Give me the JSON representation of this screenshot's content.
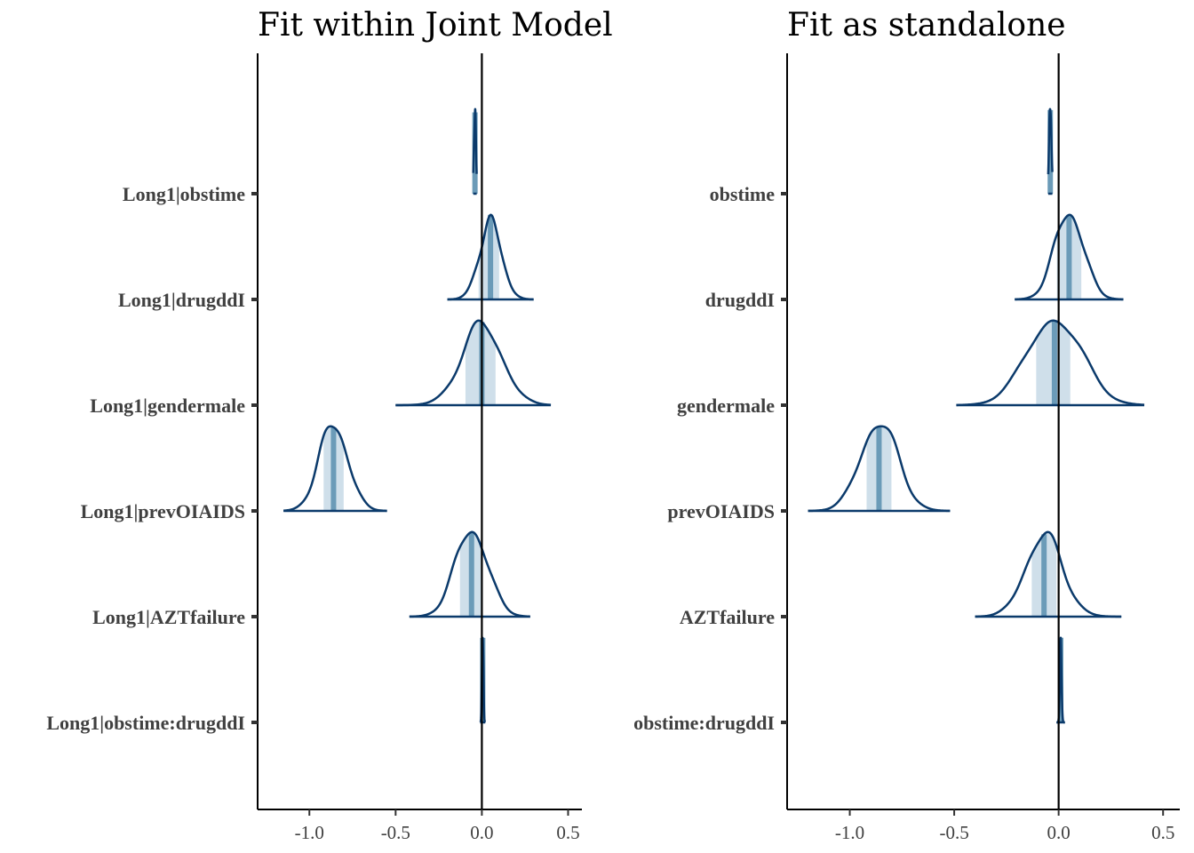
{
  "chart_data": [
    {
      "type": "density-ridges",
      "title": "Fit within Joint Model",
      "xlim": [
        -1.3,
        0.58
      ],
      "xticks": [
        -1.0,
        -0.5,
        0.0,
        0.5
      ],
      "xtick_labels": [
        "-1.0",
        "-0.5",
        "0.0",
        "0.5"
      ],
      "vline_at": 0.0,
      "grid": false,
      "colors": {
        "outline": "#0b3a6b",
        "median": "#6b9bb8",
        "interval": "#cfdfea",
        "axis": "#000000"
      },
      "params": [
        {
          "label": "Long1|obstime",
          "mean": -0.04,
          "sd": 0.006,
          "min": -0.05,
          "max": -0.03,
          "ci": [
            -0.045,
            -0.035
          ],
          "peak": 0.8
        },
        {
          "label": "Long1|drugddI",
          "mean": 0.05,
          "sd": 0.065,
          "min": -0.2,
          "max": 0.3,
          "ci": [
            -0.02,
            0.1
          ],
          "peak": 0.8
        },
        {
          "label": "Long1|gendermale",
          "mean": 0.0,
          "sd": 0.12,
          "min": -0.5,
          "max": 0.4,
          "ci": [
            -0.1,
            0.08
          ],
          "peak": 0.8
        },
        {
          "label": "Long1|prevOIAIDS",
          "mean": -0.86,
          "sd": 0.085,
          "min": -1.15,
          "max": -0.55,
          "ci": [
            -0.92,
            -0.8
          ],
          "peak": 0.8
        },
        {
          "label": "Long1|AZTfailure",
          "mean": -0.06,
          "sd": 0.095,
          "min": -0.42,
          "max": 0.28,
          "ci": [
            -0.13,
            0.0
          ],
          "peak": 0.8
        },
        {
          "label": "Long1|obstime:drugddI",
          "mean": 0.005,
          "sd": 0.004,
          "min": -0.01,
          "max": 0.02,
          "ci": [
            0.0,
            0.01
          ],
          "peak": 0.8
        }
      ]
    },
    {
      "type": "density-ridges",
      "title": "Fit as standalone",
      "xlim": [
        -1.3,
        0.58
      ],
      "xticks": [
        -1.0,
        -0.5,
        0.0,
        0.5
      ],
      "xtick_labels": [
        "-1.0",
        "-0.5",
        "0.0",
        "0.5"
      ],
      "vline_at": 0.0,
      "grid": false,
      "colors": {
        "outline": "#0b3a6b",
        "median": "#6b9bb8",
        "interval": "#cfdfea",
        "axis": "#000000"
      },
      "params": [
        {
          "label": "obstime",
          "mean": -0.04,
          "sd": 0.006,
          "min": -0.05,
          "max": -0.03,
          "ci": [
            -0.045,
            -0.035
          ],
          "peak": 0.8
        },
        {
          "label": "drugddI",
          "mean": 0.05,
          "sd": 0.07,
          "min": -0.21,
          "max": 0.31,
          "ci": [
            -0.01,
            0.11
          ],
          "peak": 0.8
        },
        {
          "label": "gendermale",
          "mean": -0.02,
          "sd": 0.13,
          "min": -0.49,
          "max": 0.41,
          "ci": [
            -0.11,
            0.06
          ],
          "peak": 0.8
        },
        {
          "label": "prevOIAIDS",
          "mean": -0.86,
          "sd": 0.09,
          "min": -1.2,
          "max": -0.52,
          "ci": [
            -0.92,
            -0.8
          ],
          "peak": 0.8
        },
        {
          "label": "AZTfailure",
          "mean": -0.07,
          "sd": 0.09,
          "min": -0.4,
          "max": 0.3,
          "ci": [
            -0.13,
            -0.01
          ],
          "peak": 0.8
        },
        {
          "label": "obstime:drugddI",
          "mean": 0.01,
          "sd": 0.004,
          "min": -0.01,
          "max": 0.03,
          "ci": [
            0.0,
            0.015
          ],
          "peak": 0.8
        }
      ]
    }
  ]
}
